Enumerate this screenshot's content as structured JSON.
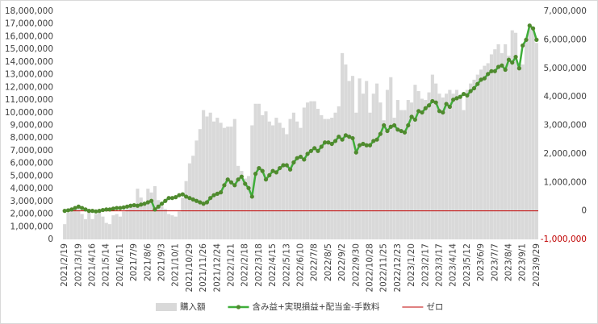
{
  "chart_data": {
    "type": "bar_line",
    "categories": [
      "2021/2/19",
      null,
      null,
      null,
      "2021/3/19",
      null,
      null,
      null,
      "2021/4/16",
      null,
      null,
      null,
      "2021/5/14",
      null,
      null,
      null,
      "2021/6/11",
      null,
      null,
      null,
      "2021/7/9",
      null,
      null,
      null,
      "2021/8/6",
      null,
      null,
      null,
      "2021/9/3",
      null,
      null,
      null,
      "2021/10/1",
      null,
      null,
      null,
      "2021/10/29",
      null,
      null,
      null,
      "2021/11/26",
      null,
      null,
      null,
      "2021/12/24",
      null,
      null,
      null,
      "2022/1/21",
      null,
      null,
      null,
      "2022/2/18",
      null,
      null,
      null,
      "2022/3/18",
      null,
      null,
      null,
      "2022/4/15",
      null,
      null,
      null,
      "2022/5/13",
      null,
      null,
      null,
      "2022/6/10",
      null,
      null,
      null,
      "2022/7/8",
      null,
      null,
      null,
      "2022/8/5",
      null,
      null,
      null,
      "2022/9/2",
      null,
      null,
      null,
      "2022/9/30",
      null,
      null,
      null,
      "2022/10/28",
      null,
      null,
      null,
      "2022/11/25",
      null,
      null,
      null,
      "2022/12/23",
      null,
      null,
      null,
      "2023/1/20",
      null,
      null,
      null,
      "2023/2/17",
      null,
      null,
      null,
      "2023/3/17",
      null,
      null,
      null,
      "2023/4/14",
      null,
      null,
      null,
      "2023/5/12",
      null,
      null,
      null,
      "2023/6/9",
      null,
      null,
      null,
      "2023/7/7",
      null,
      null,
      null,
      "2023/8/4",
      null,
      null,
      null,
      "2023/9/1",
      null,
      null,
      null,
      "2023/9/29"
    ],
    "series": [
      {
        "name": "購入額",
        "type": "bar",
        "color": "#d9d9d9",
        "axis": "y",
        "values": [
          1200000,
          2100000,
          2300000,
          2600000,
          2500000,
          2000000,
          1600000,
          2300000,
          1600000,
          2000000,
          2300000,
          1800000,
          1300000,
          1200000,
          1900000,
          2000000,
          1800000,
          2200000,
          2400000,
          2700000,
          2800000,
          4000000,
          3300000,
          2900000,
          4000000,
          3700000,
          4200000,
          3100000,
          2600000,
          2400000,
          2000000,
          1900000,
          1800000,
          2200000,
          3300000,
          4600000,
          6000000,
          6600000,
          7800000,
          8700000,
          10200000,
          9700000,
          10000000,
          9300000,
          9600000,
          9200000,
          8800000,
          8900000,
          8900000,
          9500000,
          5800000,
          5400000,
          4800000,
          5000000,
          9000000,
          10700000,
          10700000,
          9800000,
          10100000,
          9300000,
          9000000,
          9600000,
          9200000,
          8800000,
          8300000,
          9500000,
          10000000,
          9300000,
          8800000,
          10400000,
          10800000,
          10900000,
          10900000,
          10300000,
          9800000,
          9500000,
          9500000,
          9600000,
          10000000,
          10500000,
          14700000,
          13800000,
          12500000,
          12900000,
          10000000,
          12700000,
          11500000,
          12500000,
          10000000,
          11500000,
          12300000,
          10800000,
          9400000,
          11800000,
          12800000,
          9600000,
          11000000,
          10200000,
          10200000,
          11000000,
          10800000,
          12200000,
          11700000,
          11100000,
          11000000,
          11600000,
          13000000,
          12300000,
          11500000,
          11200000,
          11500000,
          11800000,
          11500000,
          11800000,
          11200000,
          10200000,
          11800000,
          12300000,
          12600000,
          13000000,
          13400000,
          13700000,
          13900000,
          14600000,
          15000000,
          15400000,
          14700000,
          15400000,
          14500000,
          16500000,
          16300000,
          13900000,
          13800000,
          15700000,
          17000000,
          16500000,
          15500000
        ]
      },
      {
        "name": "含み益+実現損益+配当金-手数料",
        "type": "line",
        "color": "#3fae3a",
        "marker_color": "#4f8a2e",
        "axis": "y2",
        "values": [
          0,
          20000,
          50000,
          100000,
          150000,
          100000,
          50000,
          0,
          0,
          -20000,
          0,
          30000,
          50000,
          50000,
          80000,
          100000,
          100000,
          120000,
          150000,
          180000,
          200000,
          180000,
          220000,
          250000,
          300000,
          350000,
          50000,
          150000,
          250000,
          350000,
          450000,
          450000,
          480000,
          550000,
          580000,
          500000,
          450000,
          400000,
          350000,
          300000,
          250000,
          300000,
          450000,
          550000,
          600000,
          650000,
          900000,
          1100000,
          1000000,
          900000,
          1100000,
          1200000,
          950000,
          800000,
          500000,
          1300000,
          1500000,
          1400000,
          1100000,
          1250000,
          1400000,
          1350000,
          1500000,
          1600000,
          1600000,
          1450000,
          1700000,
          1850000,
          1900000,
          1800000,
          2000000,
          2100000,
          2200000,
          2100000,
          2250000,
          2400000,
          2400000,
          2350000,
          2450000,
          2600000,
          2500000,
          2650000,
          2600000,
          2550000,
          2050000,
          2300000,
          2350000,
          2300000,
          2300000,
          2450000,
          2500000,
          2700000,
          3000000,
          2800000,
          2950000,
          3000000,
          2850000,
          2800000,
          2750000,
          3000000,
          3300000,
          3200000,
          3500000,
          3450000,
          3600000,
          3700000,
          3850000,
          3800000,
          3500000,
          3450000,
          3750000,
          3650000,
          3900000,
          3950000,
          4000000,
          4100000,
          4050000,
          4200000,
          4300000,
          4450000,
          4600000,
          4650000,
          4800000,
          4900000,
          4900000,
          5050000,
          5100000,
          4950000,
          5300000,
          5200000,
          5400000,
          5000000,
          5800000,
          6000000,
          6500000,
          6400000,
          6000000
        ]
      },
      {
        "name": "ゼロ",
        "type": "hline",
        "color": "#c00000",
        "axis": "y2",
        "value": 0
      }
    ],
    "ylim": [
      0,
      18000000
    ],
    "yticks": [
      {
        "value": 0,
        "label": "0"
      },
      {
        "value": 1000000,
        "label": "1,000,000"
      },
      {
        "value": 2000000,
        "label": "2,000,000"
      },
      {
        "value": 3000000,
        "label": "3,000,000"
      },
      {
        "value": 4000000,
        "label": "4,000,000"
      },
      {
        "value": 5000000,
        "label": "5,000,000"
      },
      {
        "value": 6000000,
        "label": "6,000,000"
      },
      {
        "value": 7000000,
        "label": "7,000,000"
      },
      {
        "value": 8000000,
        "label": "8,000,000"
      },
      {
        "value": 9000000,
        "label": "9,000,000"
      },
      {
        "value": 10000000,
        "label": "10,000,000"
      },
      {
        "value": 11000000,
        "label": "11,000,000"
      },
      {
        "value": 12000000,
        "label": "12,000,000"
      },
      {
        "value": 13000000,
        "label": "13,000,000"
      },
      {
        "value": 14000000,
        "label": "14,000,000"
      },
      {
        "value": 15000000,
        "label": "15,000,000"
      },
      {
        "value": 16000000,
        "label": "16,000,000"
      },
      {
        "value": 17000000,
        "label": "17,000,000"
      },
      {
        "value": 18000000,
        "label": "18,000,000"
      }
    ],
    "y2lim": [
      -1000000,
      7000000
    ],
    "y2ticks": [
      {
        "value": -1000000,
        "label": "-1,000,000"
      },
      {
        "value": 0,
        "label": "0"
      },
      {
        "value": 1000000,
        "label": "1,000,000"
      },
      {
        "value": 2000000,
        "label": "2,000,000"
      },
      {
        "value": 3000000,
        "label": "3,000,000"
      },
      {
        "value": 4000000,
        "label": "4,000,000"
      },
      {
        "value": 5000000,
        "label": "5,000,000"
      },
      {
        "value": 6000000,
        "label": "6,000,000"
      },
      {
        "value": 7000000,
        "label": "7,000,000"
      }
    ],
    "legend": "bottom"
  }
}
